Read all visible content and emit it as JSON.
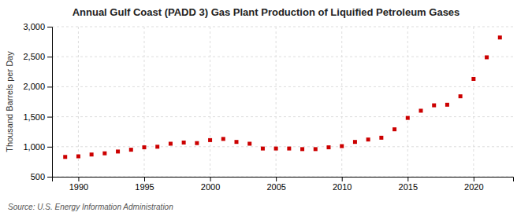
{
  "chart_data": {
    "type": "scatter",
    "title": "Annual Gulf Coast (PADD 3) Gas Plant Production of Liquified Petroleum Gases",
    "ylabel": "Thousand Barrels per Day",
    "annotations": [
      "Source: U.S. Energy Information Administration"
    ],
    "x": [
      1989,
      1990,
      1991,
      1992,
      1993,
      1994,
      1995,
      1996,
      1997,
      1998,
      1999,
      2000,
      2001,
      2002,
      2003,
      2004,
      2005,
      2006,
      2007,
      2008,
      2009,
      2010,
      2011,
      2012,
      2013,
      2014,
      2015,
      2016,
      2017,
      2018,
      2019,
      2020,
      2021,
      2022
    ],
    "values": [
      830,
      840,
      870,
      890,
      920,
      950,
      990,
      1000,
      1050,
      1070,
      1060,
      1110,
      1130,
      1080,
      1050,
      970,
      970,
      970,
      960,
      960,
      990,
      1010,
      1080,
      1120,
      1150,
      1290,
      1480,
      1600,
      1690,
      1700,
      1840,
      2130,
      2490,
      2820
    ],
    "color": "#cc0000",
    "marker": "square",
    "xlim": [
      1988,
      2023
    ],
    "xticks": [
      1990,
      1995,
      2000,
      2005,
      2010,
      2015,
      2020
    ],
    "ylim": [
      500,
      3000
    ],
    "yticks": [
      500,
      {
        "value": 1000,
        "label": "1,000"
      },
      {
        "value": 1500,
        "label": "1,500"
      },
      {
        "value": 2000,
        "label": "2,000"
      },
      {
        "value": 2500,
        "label": "2,500"
      },
      {
        "value": 3000,
        "label": "3,000"
      }
    ],
    "grid": true
  }
}
